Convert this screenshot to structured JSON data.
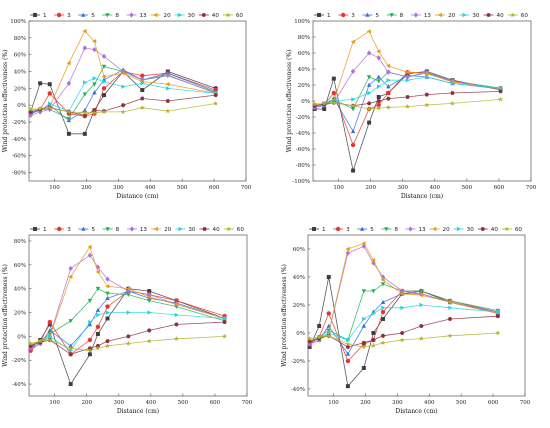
{
  "colors": {
    "1": "#3d3d3d",
    "3": "#e8332f",
    "5": "#3b6fd8",
    "8": "#21b257",
    "13": "#b16fe0",
    "20": "#e89a14",
    "30": "#25d3e0",
    "40": "#8e2f3f",
    "60": "#b3b32b"
  },
  "chart_data": [
    {
      "type": "line",
      "title": "",
      "xlabel": "Distance (cm)",
      "ylabel": "Wind protection effectiveness (%)",
      "xlim": [
        20,
        700
      ],
      "ylim": [
        -90,
        100
      ],
      "xticks": [
        100,
        200,
        300,
        400,
        500,
        600,
        700
      ],
      "yticks": [
        -80,
        -60,
        -40,
        -20,
        0,
        20,
        40,
        60,
        80,
        100
      ],
      "ytick_labels": [
        "-80%",
        "-60%",
        "-40%",
        "-20%",
        "0%",
        "20%",
        "40%",
        "60%",
        "80%",
        "100%"
      ],
      "x": [
        25,
        55,
        85,
        145,
        195,
        225,
        255,
        315,
        375,
        455,
        605
      ],
      "series": [
        {
          "name": "1",
          "marker": "square",
          "values": [
            -8,
            26,
            25,
            -34,
            -34,
            -6,
            12,
            40,
            18,
            40,
            20
          ]
        },
        {
          "name": "3",
          "marker": "circle",
          "values": [
            -10,
            -5,
            14,
            -10,
            -13,
            -10,
            20,
            40,
            35,
            38,
            18
          ]
        },
        {
          "name": "5",
          "marker": "tri-up",
          "values": [
            -10,
            -6,
            0,
            -18,
            -6,
            15,
            30,
            42,
            30,
            38,
            16
          ]
        },
        {
          "name": "8",
          "marker": "tri-down",
          "values": [
            -8,
            -5,
            -5,
            -16,
            13,
            25,
            46,
            40,
            30,
            35,
            15
          ]
        },
        {
          "name": "13",
          "marker": "diamond",
          "values": [
            -12,
            -8,
            -5,
            26,
            68,
            66,
            58,
            40,
            30,
            36,
            14
          ]
        },
        {
          "name": "20",
          "marker": "tri-left",
          "values": [
            -5,
            -5,
            -2,
            50,
            88,
            76,
            34,
            38,
            28,
            25,
            14
          ]
        },
        {
          "name": "30",
          "marker": "tri-right",
          "values": [
            -8,
            -6,
            2,
            -7,
            27,
            32,
            28,
            22,
            26,
            20,
            14
          ]
        },
        {
          "name": "40",
          "marker": "hexagon",
          "values": [
            -8,
            -5,
            -3,
            -8,
            -12,
            -6,
            -7,
            0,
            8,
            5,
            12
          ]
        },
        {
          "name": "60",
          "marker": "star",
          "values": [
            -5,
            -4,
            -3,
            -8,
            -9,
            -9,
            -8,
            -8,
            -3,
            -7,
            2
          ]
        }
      ],
      "legend": {
        "position": "top",
        "entries": [
          "1",
          "3",
          "5",
          "8",
          "13",
          "20",
          "30",
          "40",
          "60"
        ]
      }
    },
    {
      "type": "line",
      "title": "",
      "xlabel": "Distance (cm)",
      "ylabel": "Wind protection effectiveness (%)",
      "xlim": [
        20,
        700
      ],
      "ylim": [
        -100,
        100
      ],
      "xticks": [
        100,
        200,
        300,
        400,
        500,
        600,
        700
      ],
      "yticks": [
        -100,
        -80,
        -60,
        -40,
        -20,
        0,
        20,
        40,
        60,
        80,
        100
      ],
      "ytick_labels": [
        "-100%",
        "-80%",
        "-60%",
        "-40%",
        "-20%",
        "0%",
        "20%",
        "40%",
        "60%",
        "80%",
        "100%"
      ],
      "x": [
        25,
        55,
        85,
        145,
        195,
        225,
        255,
        315,
        375,
        455,
        605
      ],
      "series": [
        {
          "name": "1",
          "marker": "square",
          "values": [
            -10,
            -10,
            28,
            -87,
            -27,
            5,
            10,
            34,
            37,
            26,
            14
          ]
        },
        {
          "name": "3",
          "marker": "circle",
          "values": [
            -8,
            -5,
            10,
            -55,
            -10,
            -5,
            10,
            36,
            35,
            24,
            16
          ]
        },
        {
          "name": "5",
          "marker": "tri-up",
          "values": [
            -8,
            -6,
            3,
            -38,
            20,
            30,
            18,
            32,
            30,
            22,
            15
          ]
        },
        {
          "name": "8",
          "marker": "tri-down",
          "values": [
            -6,
            -3,
            2,
            -10,
            30,
            25,
            36,
            30,
            35,
            25,
            16
          ]
        },
        {
          "name": "13",
          "marker": "diamond",
          "values": [
            -8,
            -5,
            -2,
            37,
            60,
            54,
            36,
            30,
            36,
            25,
            15
          ]
        },
        {
          "name": "20",
          "marker": "tri-left",
          "values": [
            -5,
            -4,
            0,
            74,
            87,
            62,
            44,
            36,
            34,
            24,
            15
          ]
        },
        {
          "name": "30",
          "marker": "tri-right",
          "values": [
            -6,
            -4,
            0,
            2,
            10,
            18,
            26,
            26,
            30,
            22,
            16
          ]
        },
        {
          "name": "40",
          "marker": "hexagon",
          "values": [
            -6,
            -4,
            -2,
            -6,
            -3,
            0,
            3,
            5,
            8,
            10,
            12
          ]
        },
        {
          "name": "60",
          "marker": "star",
          "values": [
            -4,
            -3,
            -2,
            -6,
            -10,
            -9,
            -8,
            -7,
            -5,
            -3,
            2
          ]
        }
      ]
    },
    {
      "type": "line",
      "title": "",
      "xlabel": "Distance (cm)",
      "ylabel": "Wind protection effectiveness (%)",
      "xlim": [
        20,
        700
      ],
      "ylim": [
        -50,
        85
      ],
      "xticks": [
        100,
        200,
        300,
        400,
        500,
        600,
        700
      ],
      "yticks": [
        -40,
        -20,
        0,
        20,
        40,
        60,
        80
      ],
      "ytick_labels": [
        "-40%",
        "-20%",
        "0%",
        "20%",
        "40%",
        "60%",
        "80%"
      ],
      "x": [
        25,
        55,
        85,
        150,
        210,
        235,
        265,
        330,
        395,
        480,
        630
      ],
      "series": [
        {
          "name": "1",
          "marker": "square",
          "values": [
            -10,
            -3,
            10,
            -40,
            -15,
            2,
            15,
            40,
            38,
            30,
            15
          ]
        },
        {
          "name": "3",
          "marker": "circle",
          "values": [
            -12,
            -5,
            12,
            -15,
            -3,
            8,
            25,
            38,
            35,
            30,
            17
          ]
        },
        {
          "name": "5",
          "marker": "tri-up",
          "values": [
            -10,
            -6,
            5,
            -8,
            10,
            22,
            32,
            38,
            32,
            28,
            15
          ]
        },
        {
          "name": "8",
          "marker": "tri-down",
          "values": [
            -8,
            -4,
            2,
            13,
            30,
            40,
            36,
            35,
            30,
            25,
            13
          ]
        },
        {
          "name": "13",
          "marker": "diamond",
          "values": [
            -10,
            -6,
            0,
            57,
            68,
            58,
            48,
            38,
            35,
            27,
            15
          ]
        },
        {
          "name": "20",
          "marker": "tri-left",
          "values": [
            -7,
            -4,
            0,
            50,
            75,
            54,
            42,
            40,
            33,
            27,
            15
          ]
        },
        {
          "name": "30",
          "marker": "tri-right",
          "values": [
            -8,
            -5,
            0,
            -12,
            12,
            18,
            20,
            20,
            20,
            18,
            15
          ]
        },
        {
          "name": "40",
          "marker": "hexagon",
          "values": [
            -8,
            -5,
            -3,
            -15,
            -10,
            -8,
            -4,
            0,
            5,
            10,
            12
          ]
        },
        {
          "name": "60",
          "marker": "star",
          "values": [
            -6,
            -4,
            -3,
            -10,
            -12,
            -10,
            -8,
            -6,
            -4,
            -2,
            0
          ]
        }
      ]
    },
    {
      "type": "line",
      "title": "",
      "xlabel": "Distance (cm)",
      "ylabel": "Wind protection effectiveness (%)",
      "xlim": [
        20,
        700
      ],
      "ylim": [
        -45,
        70
      ],
      "xticks": [
        100,
        200,
        300,
        400,
        500,
        600,
        700
      ],
      "yticks": [
        -40,
        -20,
        0,
        20,
        40,
        60
      ],
      "ytick_labels": [
        "-40%",
        "-20%",
        "0%",
        "20%",
        "40%",
        "60%"
      ],
      "x": [
        25,
        55,
        85,
        145,
        195,
        225,
        255,
        315,
        375,
        465,
        615
      ],
      "series": [
        {
          "name": "1",
          "marker": "square",
          "values": [
            -10,
            5,
            40,
            -38,
            -25,
            0,
            10,
            28,
            30,
            22,
            14
          ]
        },
        {
          "name": "3",
          "marker": "circle",
          "values": [
            -8,
            -3,
            14,
            -20,
            -8,
            -5,
            15,
            30,
            30,
            23,
            15
          ]
        },
        {
          "name": "5",
          "marker": "tri-up",
          "values": [
            -8,
            -5,
            5,
            -15,
            5,
            15,
            22,
            28,
            28,
            22,
            15
          ]
        },
        {
          "name": "8",
          "marker": "tri-down",
          "values": [
            -6,
            -3,
            2,
            -5,
            30,
            30,
            35,
            30,
            30,
            23,
            16
          ]
        },
        {
          "name": "13",
          "marker": "diamond",
          "values": [
            -8,
            -5,
            0,
            57,
            62,
            50,
            40,
            30,
            28,
            22,
            15
          ]
        },
        {
          "name": "20",
          "marker": "tri-left",
          "values": [
            -6,
            -4,
            0,
            60,
            64,
            52,
            38,
            28,
            27,
            22,
            14
          ]
        },
        {
          "name": "30",
          "marker": "tri-right",
          "values": [
            -6,
            -4,
            0,
            -5,
            10,
            14,
            18,
            18,
            20,
            18,
            15
          ]
        },
        {
          "name": "40",
          "marker": "hexagon",
          "values": [
            -6,
            -4,
            -2,
            -10,
            -7,
            -5,
            -2,
            0,
            5,
            10,
            12
          ]
        },
        {
          "name": "60",
          "marker": "star",
          "values": [
            -4,
            -3,
            -2,
            -8,
            -10,
            -9,
            -7,
            -5,
            -4,
            -2,
            0
          ]
        }
      ]
    }
  ]
}
